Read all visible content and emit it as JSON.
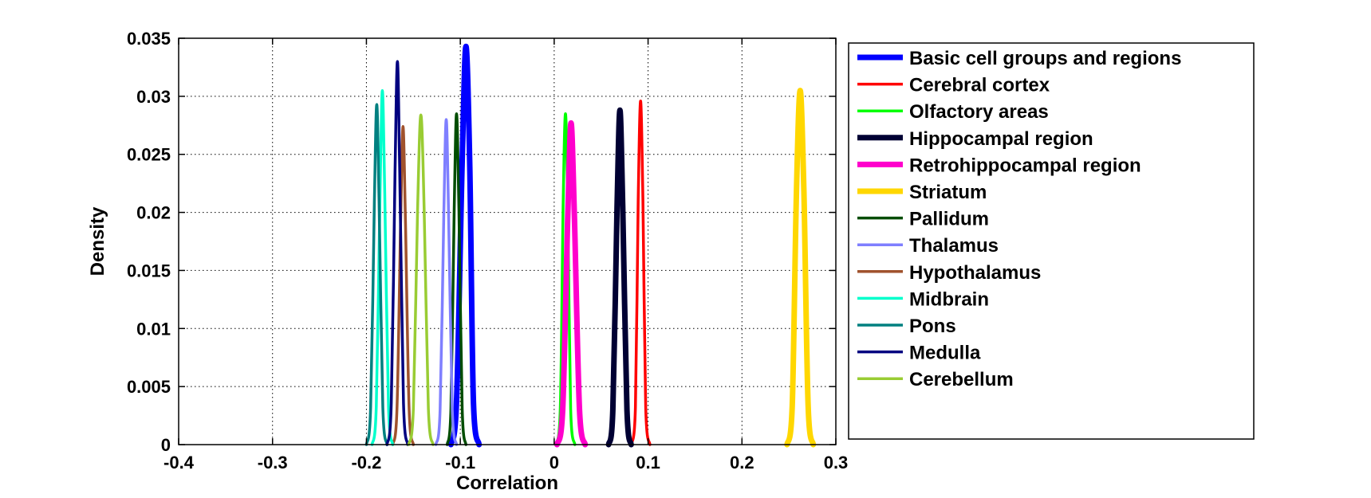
{
  "chart_data": {
    "type": "line",
    "title": "",
    "xlabel": "Correlation",
    "ylabel": "Density",
    "xlim": [
      -0.4,
      0.3
    ],
    "ylim": [
      0,
      0.035
    ],
    "xticks": [
      -0.4,
      -0.3,
      -0.2,
      -0.1,
      0,
      0.1,
      0.2,
      0.3
    ],
    "xtick_labels": [
      "-0.4",
      "-0.3",
      "-0.2",
      "-0.1",
      "0",
      "0.1",
      "0.2",
      "0.3"
    ],
    "yticks": [
      0,
      0.005,
      0.01,
      0.015,
      0.02,
      0.025,
      0.03,
      0.035
    ],
    "ytick_labels": [
      "0",
      "0.005",
      "0.01",
      "0.015",
      "0.02",
      "0.025",
      "0.03",
      "0.035"
    ],
    "grid": true,
    "legend_position": "right",
    "series": [
      {
        "name": "Basic cell groups and regions",
        "color": "#0000ff",
        "thick": true,
        "x": [
          -0.11,
          -0.104,
          -0.098,
          -0.094,
          -0.09,
          -0.086,
          -0.08
        ],
        "y": [
          0,
          0.0037,
          0.0244,
          0.0343,
          0.0244,
          0.0037,
          0
        ]
      },
      {
        "name": "Cerebral cortex",
        "color": "#ff0000",
        "thick": false,
        "x": [
          0.082,
          0.0865,
          0.0895,
          0.092,
          0.0945,
          0.0975,
          0.102
        ],
        "y": [
          0,
          0.0032,
          0.0211,
          0.0296,
          0.0211,
          0.0032,
          0
        ]
      },
      {
        "name": "Olfactory areas",
        "color": "#00ff00",
        "thick": false,
        "x": [
          0.002,
          0.0065,
          0.0095,
          0.012,
          0.0145,
          0.0175,
          0.022
        ],
        "y": [
          0,
          0.0031,
          0.0203,
          0.0285,
          0.0203,
          0.0031,
          0
        ]
      },
      {
        "name": "Hippocampal region",
        "color": "#000033",
        "thick": true,
        "x": [
          0.058,
          0.0625,
          0.067,
          0.07,
          0.073,
          0.0775,
          0.082
        ],
        "y": [
          0,
          0.003,
          0.0205,
          0.0288,
          0.0205,
          0.003,
          0
        ]
      },
      {
        "name": "Retrohippocampal region",
        "color": "#ff00cc",
        "thick": true,
        "x": [
          0.003,
          0.009,
          0.0145,
          0.018,
          0.0215,
          0.027,
          0.033
        ],
        "y": [
          0,
          0.003,
          0.0197,
          0.0277,
          0.0197,
          0.003,
          0
        ]
      },
      {
        "name": "Striatum",
        "color": "#ffd700",
        "thick": true,
        "x": [
          0.248,
          0.2535,
          0.258,
          0.262,
          0.266,
          0.2705,
          0.276
        ],
        "y": [
          0,
          0.0033,
          0.0217,
          0.0305,
          0.0217,
          0.0033,
          0
        ]
      },
      {
        "name": "Pallidum",
        "color": "#004d00",
        "thick": false,
        "x": [
          -0.114,
          -0.11,
          -0.1065,
          -0.104,
          -0.1015,
          -0.098,
          -0.094
        ],
        "y": [
          0,
          0.0031,
          0.0203,
          0.0285,
          0.0203,
          0.0031,
          0
        ]
      },
      {
        "name": "Thalamus",
        "color": "#7f7fff",
        "thick": false,
        "x": [
          -0.126,
          -0.1215,
          -0.1175,
          -0.115,
          -0.1125,
          -0.1085,
          -0.104
        ],
        "y": [
          0,
          0.003,
          0.02,
          0.028,
          0.02,
          0.003,
          0
        ]
      },
      {
        "name": "Hypothalamus",
        "color": "#a0522d",
        "thick": false,
        "x": [
          -0.172,
          -0.1675,
          -0.1635,
          -0.161,
          -0.1585,
          -0.1545,
          -0.15
        ],
        "y": [
          0,
          0.003,
          0.0195,
          0.0274,
          0.0195,
          0.003,
          0
        ]
      },
      {
        "name": "Midbrain",
        "color": "#00ffcc",
        "thick": false,
        "x": [
          -0.194,
          -0.1895,
          -0.1855,
          -0.183,
          -0.1805,
          -0.1765,
          -0.172
        ],
        "y": [
          0,
          0.0033,
          0.0217,
          0.0305,
          0.0217,
          0.0033,
          0
        ]
      },
      {
        "name": "Pons",
        "color": "#008080",
        "thick": false,
        "x": [
          -0.2,
          -0.1955,
          -0.1915,
          -0.189,
          -0.1865,
          -0.1825,
          -0.178
        ],
        "y": [
          0,
          0.0032,
          0.0209,
          0.0293,
          0.0209,
          0.0032,
          0
        ]
      },
      {
        "name": "Medulla",
        "color": "#000080",
        "thick": false,
        "x": [
          -0.178,
          -0.1735,
          -0.1695,
          -0.167,
          -0.1645,
          -0.1605,
          -0.156
        ],
        "y": [
          0,
          0.0036,
          0.0235,
          0.033,
          0.0235,
          0.0036,
          0
        ]
      },
      {
        "name": "Cerebellum",
        "color": "#99cc33",
        "thick": false,
        "x": [
          -0.155,
          -0.15,
          -0.1455,
          -0.142,
          -0.1385,
          -0.134,
          -0.129
        ],
        "y": [
          0,
          0.0031,
          0.0203,
          0.0284,
          0.0203,
          0.0031,
          0
        ]
      }
    ]
  }
}
